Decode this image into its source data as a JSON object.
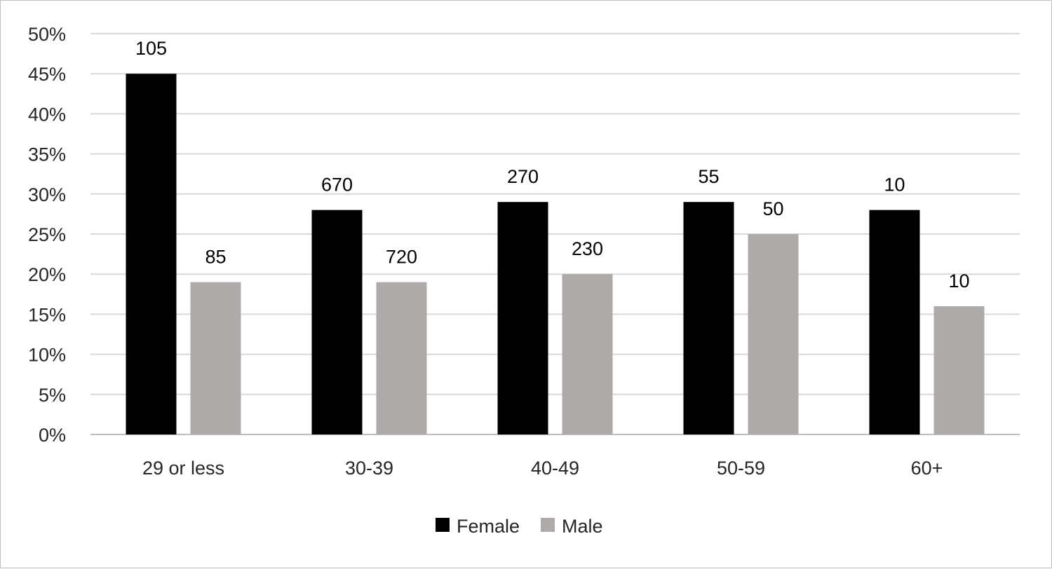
{
  "chart_data": {
    "type": "bar",
    "categories": [
      "29 or less",
      "30-39",
      "40-49",
      "50-59",
      "60+"
    ],
    "series": [
      {
        "name": "Female",
        "color": "#000000",
        "values": [
          45,
          28,
          29,
          29,
          28
        ],
        "data_labels": [
          "105",
          "670",
          "270",
          "55",
          "10"
        ]
      },
      {
        "name": "Male",
        "color": "#aeaaaa",
        "values": [
          19,
          19,
          20,
          25,
          16
        ],
        "data_labels": [
          "85",
          "720",
          "230",
          "50",
          "10"
        ]
      }
    ],
    "y_ticks": [
      "0%",
      "5%",
      "10%",
      "15%",
      "20%",
      "25%",
      "30%",
      "35%",
      "40%",
      "45%",
      "50%"
    ],
    "ylim": [
      0,
      50
    ],
    "y_unit": "%",
    "grid": true,
    "legend_position": "bottom"
  }
}
